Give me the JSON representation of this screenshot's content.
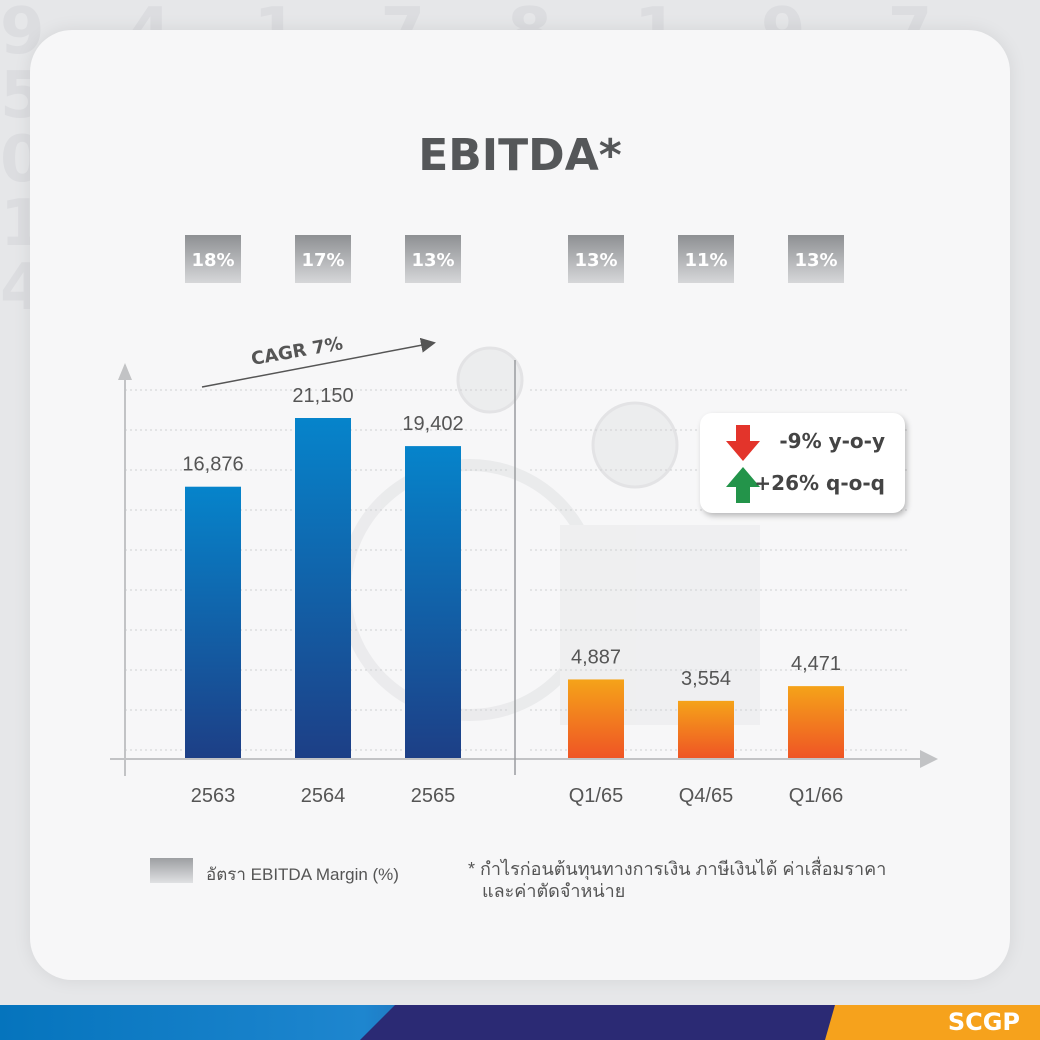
{
  "chart_data": {
    "type": "bar",
    "title": "EBITDA*",
    "categories": [
      "2563",
      "2564",
      "2565",
      "Q1/65",
      "Q4/65",
      "Q1/66"
    ],
    "series": [
      {
        "values": [
          16876,
          21150,
          19402,
          4887,
          3554,
          4471
        ],
        "labels": [
          "16,876",
          "21,150",
          "19,402",
          "4,887",
          "3,554",
          "4,471"
        ]
      }
    ],
    "annual_color": "#0580c6",
    "quarterly_color": "#f07b1f",
    "margin": {
      "values": [
        "18%",
        "17%",
        "13%",
        "13%",
        "11%",
        "13%"
      ]
    },
    "cagr": {
      "label": "CAGR 7%"
    },
    "grid": true
  },
  "deltas": [
    {
      "direction": "down",
      "text": "-9% y-o-y",
      "color": "#e3342b"
    },
    {
      "direction": "up",
      "text": "+26% q-o-q",
      "color": "#23944a"
    }
  ],
  "legend": {
    "label": "อัตรา EBITDA Margin (%)"
  },
  "footnote": {
    "line1": "* กำไรก่อนต้นทุนทางการเงิน ภาษีเงินได้ ค่าเสื่อมราคา",
    "line2": "และค่าตัดจำหน่าย"
  },
  "brand": "SCGP"
}
